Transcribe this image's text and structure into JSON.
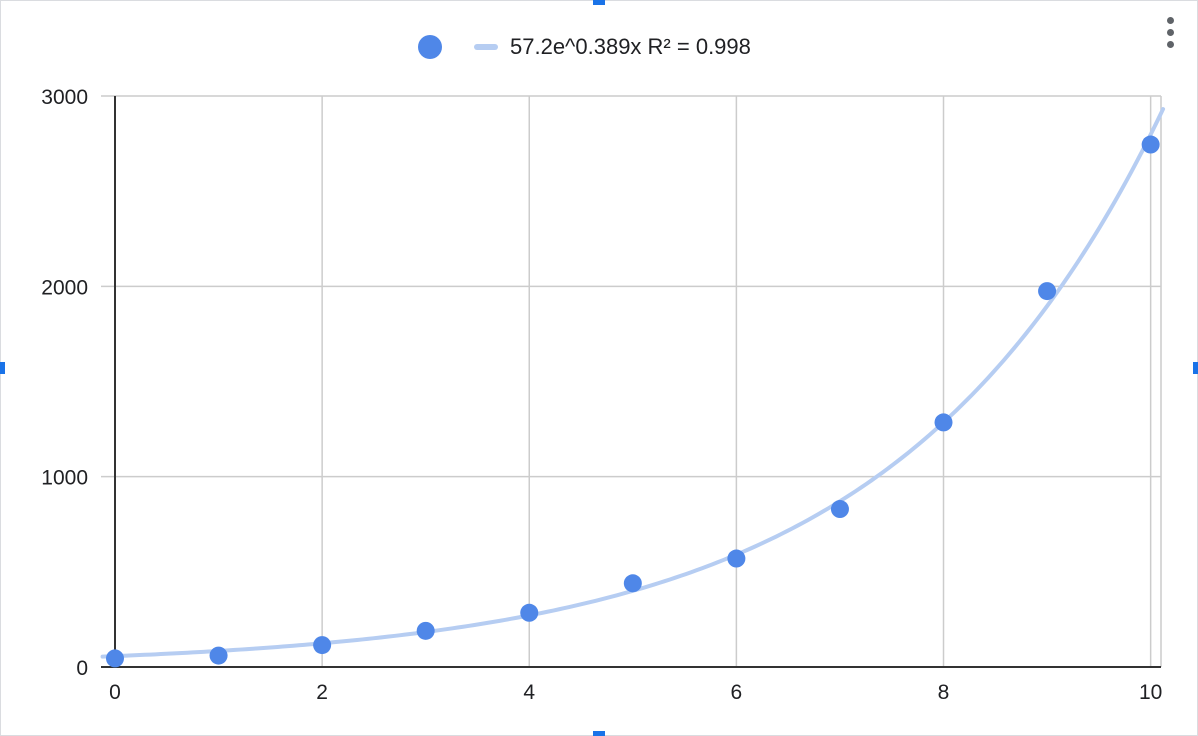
{
  "colors": {
    "point": "#4f87e8",
    "trendline": "#b6cdf2",
    "grid": "#cccccc",
    "axis": "#333333",
    "handle": "#1a73e8"
  },
  "legend": {
    "trendline_label": "57.2e^0.389x R² = 0.998"
  },
  "menu": {
    "icon": "more-vert-icon"
  },
  "chart_data": {
    "type": "scatter",
    "title": "",
    "xlabel": "",
    "ylabel": "",
    "xlim": [
      0,
      10.1
    ],
    "ylim": [
      0,
      3000
    ],
    "xticks": [
      "0",
      "2",
      "4",
      "6",
      "8",
      "10"
    ],
    "yticks": [
      "0",
      "1000",
      "2000",
      "3000"
    ],
    "grid": true,
    "legend_position": "top",
    "series": [
      {
        "x": [
          0,
          1,
          2,
          3,
          4,
          5,
          6,
          7,
          8,
          9,
          10
        ],
        "y": [
          45,
          60,
          115,
          190,
          285,
          440,
          570,
          830,
          1285,
          1975,
          2745
        ]
      }
    ],
    "trendline": {
      "type": "exponential",
      "a": 57.2,
      "b": 0.389,
      "r_squared": 0.998,
      "label": "57.2e^0.389x R² = 0.998"
    }
  }
}
